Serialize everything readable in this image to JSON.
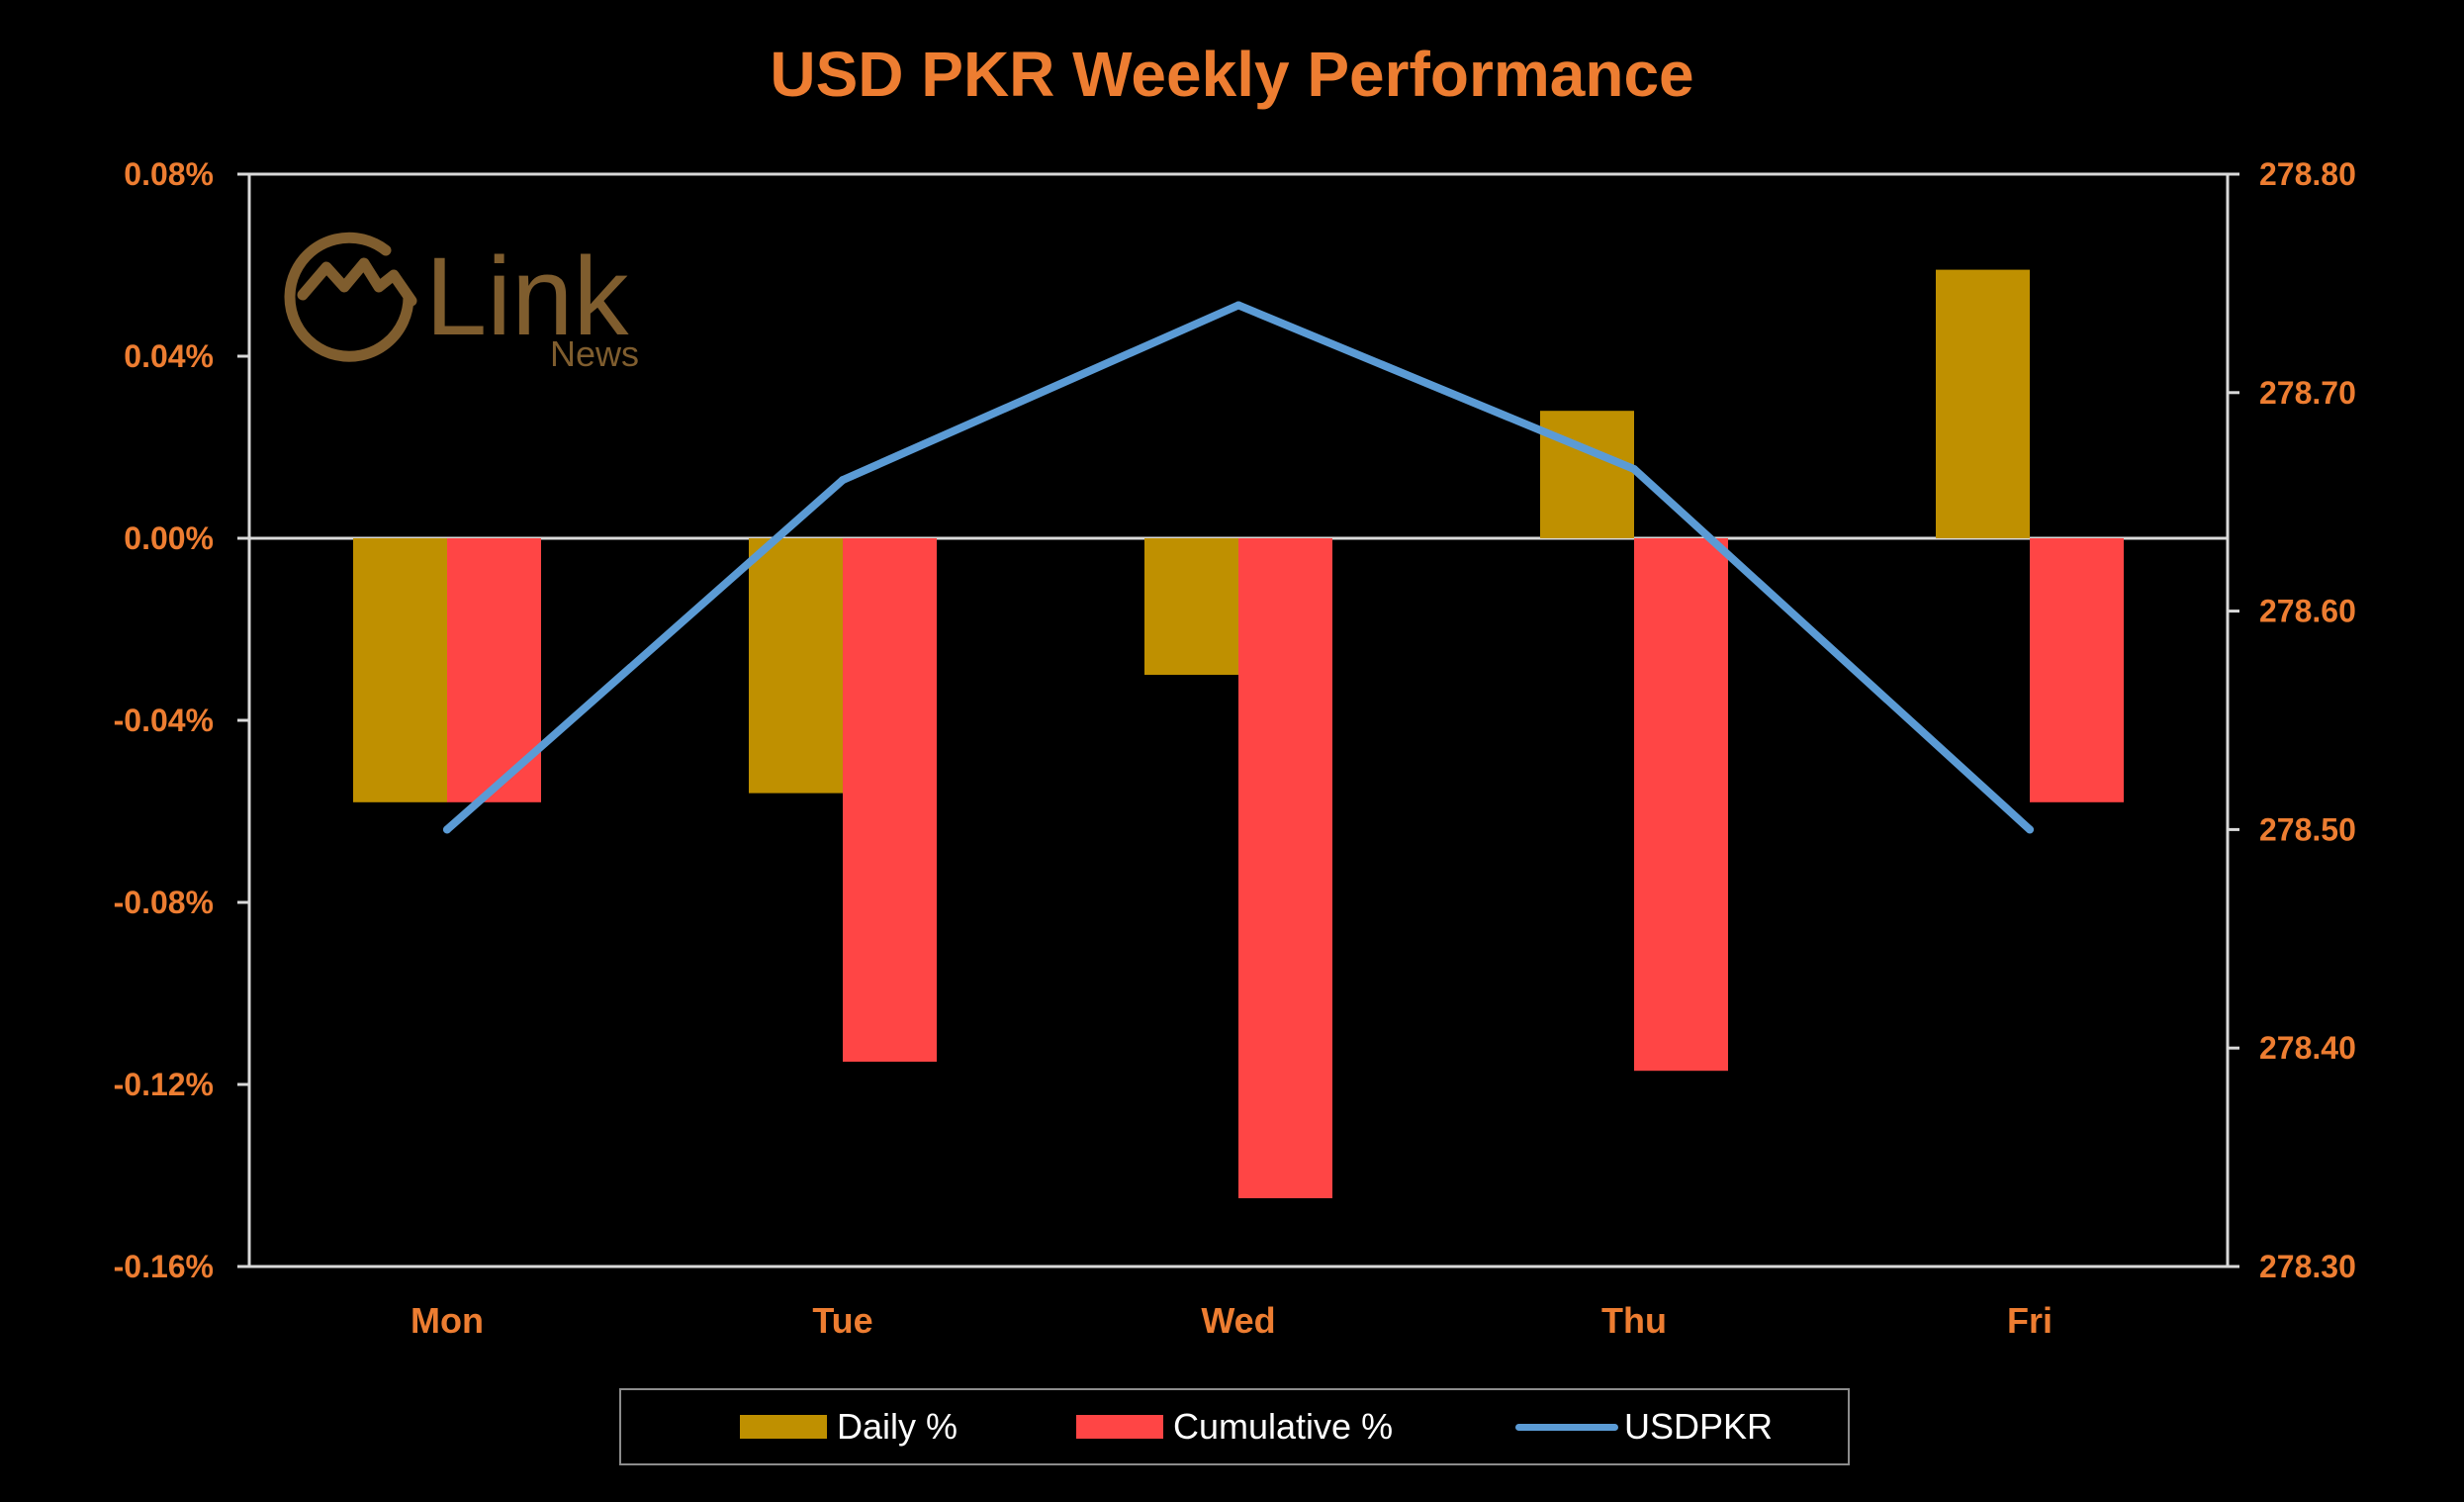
{
  "chart_data": {
    "type": "bar",
    "title": "USD PKR Weekly Performance",
    "categories": [
      "Mon",
      "Tue",
      "Wed",
      "Thu",
      "Fri"
    ],
    "series": [
      {
        "name": "Daily %",
        "type": "bar",
        "axis": "left",
        "color": "#BF9000",
        "values": [
          -0.058,
          -0.056,
          -0.03,
          0.028,
          0.059
        ]
      },
      {
        "name": "Cumulative %",
        "type": "bar",
        "axis": "left",
        "color": "#FF4545",
        "values": [
          -0.058,
          -0.115,
          -0.145,
          -0.117,
          -0.058
        ]
      },
      {
        "name": "USDPKR",
        "type": "line",
        "axis": "right",
        "color": "#5B9BD5",
        "values": [
          278.5,
          278.66,
          278.74,
          278.665,
          278.5
        ]
      }
    ],
    "y_left": {
      "min": -0.16,
      "max": 0.08,
      "ticks": [
        "0.08%",
        "0.04%",
        "0.00%",
        "-0.04%",
        "-0.08%",
        "-0.12%",
        "-0.16%"
      ]
    },
    "y_right": {
      "min": 278.3,
      "max": 278.8,
      "ticks": [
        "278.80",
        "278.70",
        "278.60",
        "278.50",
        "278.40",
        "278.30"
      ]
    },
    "legend": "bottom",
    "grid": false
  },
  "watermark": {
    "brand": "Link",
    "sub": "News"
  },
  "colors": {
    "background": "#000000",
    "accent": "#ED7D31",
    "axis": "#d9d9d9",
    "watermark": "#7f5d2e"
  }
}
